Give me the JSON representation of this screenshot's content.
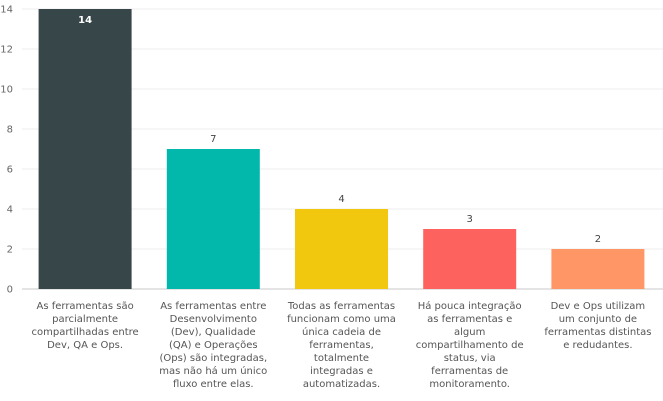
{
  "chart_data": {
    "type": "bar",
    "categories": [
      "As ferramentas são parcialmente compartilhadas entre Dev, QA e Ops.",
      "As ferramentas entre Desenvolvimento (Dev), Qualidade (QA) e Operações (Ops) são integradas, mas não há um único fluxo entre elas.",
      "Todas as ferramentas funcionam como uma única cadeia de ferramentas, totalmente integradas e automatizadas.",
      "Há pouca integração as ferramentas e algum compartilhamento de status, via ferramentas de monitoramento.",
      "Dev e Ops utilizam um conjunto de ferramentas distintas e redudantes."
    ],
    "values": [
      14,
      7,
      4,
      3,
      2
    ],
    "colors": [
      "#374649",
      "#01B8AA",
      "#F2C80F",
      "#FD625E",
      "#FE9666"
    ],
    "ylim": [
      0,
      14
    ],
    "yticks": [
      0,
      2,
      4,
      6,
      8,
      10,
      12,
      14
    ],
    "grid": true
  }
}
